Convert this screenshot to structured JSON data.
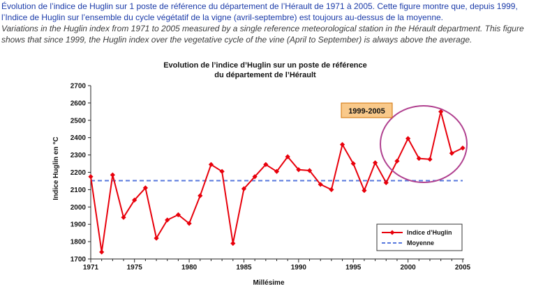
{
  "caption": {
    "french": "Évolution de l’indice de Huglin sur 1 poste de référence du département de l’Hérault de 1971 à 2005. Cette figure montre que, depuis 1999, l’Indice de Huglin sur l’ensemble du cycle végétatif de la vigne (avril-septembre) est toujours au-dessus de la moyenne.",
    "english": "Variations in the Huglin index from 1971 to 2005 measured by a single reference meteorological station in the Hérault department. This figure shows that since 1999, the Huglin index over the vegetative cycle of the vine (April to September) is always above the average."
  },
  "colors": {
    "caption_french": "#1a3aa8",
    "series_line": "#e8000b",
    "average_line": "#5577dd",
    "annotation_fill": "#f9c98a",
    "annotation_border": "#d07000",
    "ellipse": "#b0408f"
  },
  "chart_data": {
    "type": "line",
    "title": "Evolution de l’indice d’Huglin sur un poste de référence",
    "subtitle": "du département de l’Hérault",
    "xlabel": "Millésime",
    "ylabel": "Indice Huglin en °C",
    "xlim": [
      1971,
      2005
    ],
    "ylim": [
      1700,
      2700
    ],
    "xticks": [
      1971,
      1975,
      1980,
      1985,
      1990,
      1995,
      2000,
      2005
    ],
    "yticks": [
      1700,
      1800,
      1900,
      2000,
      2100,
      2200,
      2300,
      2400,
      2500,
      2600,
      2700
    ],
    "grid": false,
    "legend_position": "bottom-right",
    "series": [
      {
        "name": "Indice d’Huglin",
        "marker": "diamond",
        "x": [
          1971,
          1972,
          1973,
          1974,
          1975,
          1976,
          1977,
          1978,
          1979,
          1980,
          1981,
          1982,
          1983,
          1984,
          1985,
          1986,
          1987,
          1988,
          1989,
          1990,
          1991,
          1992,
          1993,
          1994,
          1995,
          1996,
          1997,
          1998,
          1999,
          2000,
          2001,
          2002,
          2003,
          2004,
          2005
        ],
        "y": [
          2175,
          1740,
          2185,
          1940,
          2040,
          2110,
          1820,
          1925,
          1955,
          1905,
          2065,
          2245,
          2205,
          1790,
          2105,
          2175,
          2245,
          2205,
          2290,
          2215,
          2210,
          2130,
          2100,
          2360,
          2250,
          2095,
          2255,
          2140,
          2265,
          2395,
          2280,
          2275,
          2550,
          2310,
          2340
        ]
      },
      {
        "name": "Moyenne",
        "style": "dashed",
        "y": 2152
      }
    ],
    "annotations": [
      {
        "text": "1999-2005",
        "highlight_range": [
          1999,
          2005
        ]
      }
    ]
  }
}
